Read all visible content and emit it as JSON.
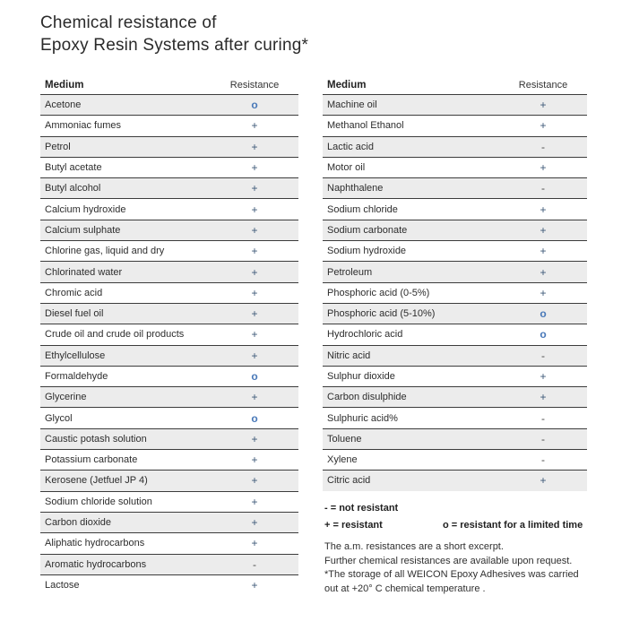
{
  "title": {
    "line1": "Chemical resistance of",
    "line2": "Epoxy Resin Systems after curing*"
  },
  "table_headers": {
    "medium": "Medium",
    "resistance": "Resistance"
  },
  "left_table": {
    "rows": [
      {
        "medium": "Acetone",
        "resistance": "o"
      },
      {
        "medium": "Ammoniac fumes",
        "resistance": "+"
      },
      {
        "medium": "Petrol",
        "resistance": "+"
      },
      {
        "medium": "Butyl acetate",
        "resistance": "+"
      },
      {
        "medium": "Butyl alcohol",
        "resistance": "+"
      },
      {
        "medium": "Calcium hydroxide",
        "resistance": "+"
      },
      {
        "medium": "Calcium sulphate",
        "resistance": "+"
      },
      {
        "medium": "Chlorine gas, liquid and dry",
        "resistance": "+"
      },
      {
        "medium": "Chlorinated water",
        "resistance": "+"
      },
      {
        "medium": "Chromic acid",
        "resistance": "+"
      },
      {
        "medium": "Diesel fuel oil",
        "resistance": "+"
      },
      {
        "medium": "Crude oil and crude oil products",
        "resistance": "+"
      },
      {
        "medium": "Ethylcellulose",
        "resistance": "+"
      },
      {
        "medium": "Formaldehyde",
        "resistance": "o"
      },
      {
        "medium": "Glycerine",
        "resistance": "+"
      },
      {
        "medium": "Glycol",
        "resistance": "o"
      },
      {
        "medium": "Caustic potash solution",
        "resistance": "+"
      },
      {
        "medium": "Potassium carbonate",
        "resistance": "+"
      },
      {
        "medium": "Kerosene (Jetfuel JP 4)",
        "resistance": "+"
      },
      {
        "medium": "Sodium chloride solution",
        "resistance": "+"
      },
      {
        "medium": "Carbon dioxide",
        "resistance": "+"
      },
      {
        "medium": "Aliphatic hydrocarbons",
        "resistance": "+"
      },
      {
        "medium": "Aromatic hydrocarbons",
        "resistance": "-"
      },
      {
        "medium": "Lactose",
        "resistance": "+"
      }
    ]
  },
  "right_table": {
    "rows": [
      {
        "medium": "Machine oil",
        "resistance": "+"
      },
      {
        "medium": "Methanol Ethanol",
        "resistance": "+"
      },
      {
        "medium": "Lactic acid",
        "resistance": "-"
      },
      {
        "medium": "Motor oil",
        "resistance": "+"
      },
      {
        "medium": "Naphthalene",
        "resistance": "-"
      },
      {
        "medium": "Sodium chloride",
        "resistance": "+"
      },
      {
        "medium": "Sodium carbonate",
        "resistance": "+"
      },
      {
        "medium": "Sodium hydroxide",
        "resistance": "+"
      },
      {
        "medium": "Petroleum",
        "resistance": "+"
      },
      {
        "medium": "Phosphoric acid (0-5%)",
        "resistance": "+"
      },
      {
        "medium": "Phosphoric acid (5-10%)",
        "resistance": "o"
      },
      {
        "medium": "Hydrochloric acid",
        "resistance": "o"
      },
      {
        "medium": "Nitric acid",
        "resistance": "-"
      },
      {
        "medium": "Sulphur dioxide",
        "resistance": "+"
      },
      {
        "medium": "Carbon disulphide",
        "resistance": "+"
      },
      {
        "medium": "Sulphuric acid%",
        "resistance": "-"
      },
      {
        "medium": "Toluene",
        "resistance": "-"
      },
      {
        "medium": "Xylene",
        "resistance": "-"
      },
      {
        "medium": "Citric acid",
        "resistance": "+"
      }
    ]
  },
  "legend": {
    "not_resistant": "- = not resistant",
    "resistant": "+ = resistant",
    "limited_time": "o = resistant for a limited time"
  },
  "footnotes": {
    "lines": [
      "The a.m. resistances are a short excerpt.",
      "Further chemical resistances are available upon request.",
      "*The storage of all WEICON Epoxy Adhesives was carried",
      "out at +20° C chemical temperature ."
    ]
  },
  "colors": {
    "plus_symbol": "#3d5877",
    "limited_symbol": "#4878b8",
    "minus_symbol": "#4a4a4a",
    "row_alt_background": "#ececec",
    "row_border": "#3c3c3c"
  }
}
